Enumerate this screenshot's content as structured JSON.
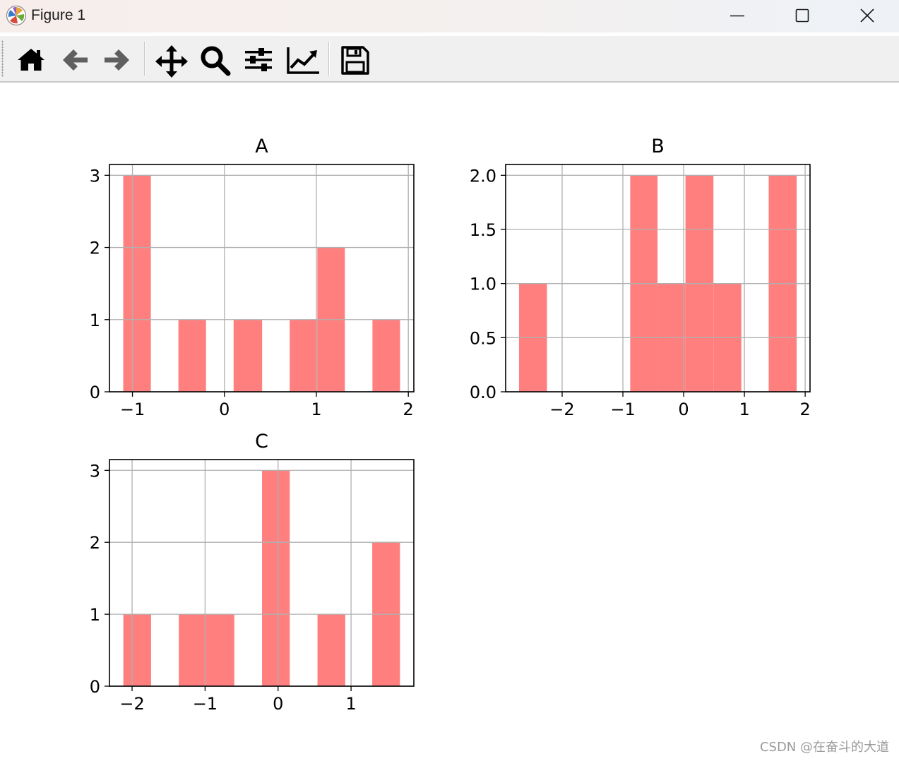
{
  "window": {
    "title": "Figure 1"
  },
  "toolbar": {
    "tools": [
      {
        "name": "home-icon",
        "tooltip": "Home"
      },
      {
        "name": "back-arrow-icon",
        "tooltip": "Back"
      },
      {
        "name": "forward-arrow-icon",
        "tooltip": "Forward"
      },
      {
        "name": "pan-icon",
        "tooltip": "Pan"
      },
      {
        "name": "zoom-icon",
        "tooltip": "Zoom"
      },
      {
        "name": "subplots-icon",
        "tooltip": "Subplots"
      },
      {
        "name": "customize-icon",
        "tooltip": "Customize"
      },
      {
        "name": "save-icon",
        "tooltip": "Save"
      }
    ]
  },
  "watermark": "CSDN @在奋斗的大道",
  "colors": {
    "bar": "#ff7f7f",
    "grid": "#b0b0b0",
    "axes": "#000000"
  },
  "chart_data": [
    {
      "type": "bar",
      "title": "A",
      "grid": true,
      "xlim": [
        -1.25,
        2.06
      ],
      "ylim": [
        0,
        3.15
      ],
      "xticks": [
        -1,
        0,
        1,
        2
      ],
      "xticklabels": [
        "−1",
        "0",
        "1",
        "2"
      ],
      "yticks": [
        0,
        1,
        2,
        3
      ],
      "yticklabels": [
        "0",
        "1",
        "2",
        "3"
      ],
      "bins": [
        {
          "x0": -1.1,
          "x1": -0.8,
          "count": 3
        },
        {
          "x0": -0.8,
          "x1": -0.5,
          "count": 0
        },
        {
          "x0": -0.5,
          "x1": -0.2,
          "count": 1
        },
        {
          "x0": -0.2,
          "x1": 0.1,
          "count": 0
        },
        {
          "x0": 0.1,
          "x1": 0.41,
          "count": 1
        },
        {
          "x0": 0.41,
          "x1": 0.71,
          "count": 0
        },
        {
          "x0": 0.71,
          "x1": 1.01,
          "count": 1
        },
        {
          "x0": 1.01,
          "x1": 1.31,
          "count": 2
        },
        {
          "x0": 1.31,
          "x1": 1.61,
          "count": 0
        },
        {
          "x0": 1.61,
          "x1": 1.91,
          "count": 1
        }
      ]
    },
    {
      "type": "bar",
      "title": "B",
      "grid": true,
      "xlim": [
        -2.93,
        2.08
      ],
      "ylim": [
        0,
        2.1
      ],
      "xticks": [
        -2,
        -1,
        0,
        1,
        2
      ],
      "xticklabels": [
        "−2",
        "−1",
        "0",
        "1",
        "2"
      ],
      "yticks": [
        0,
        0.5,
        1.0,
        1.5,
        2.0
      ],
      "yticklabels": [
        "0.0",
        "0.5",
        "1.0",
        "1.5",
        "2.0"
      ],
      "bins": [
        {
          "x0": -2.71,
          "x1": -2.25,
          "count": 1
        },
        {
          "x0": -2.25,
          "x1": -1.8,
          "count": 0
        },
        {
          "x0": -1.8,
          "x1": -1.34,
          "count": 0
        },
        {
          "x0": -1.34,
          "x1": -0.88,
          "count": 0
        },
        {
          "x0": -0.88,
          "x1": -0.43,
          "count": 2
        },
        {
          "x0": -0.43,
          "x1": 0.03,
          "count": 1
        },
        {
          "x0": 0.03,
          "x1": 0.49,
          "count": 2
        },
        {
          "x0": 0.49,
          "x1": 0.95,
          "count": 1
        },
        {
          "x0": 0.95,
          "x1": 1.4,
          "count": 0
        },
        {
          "x0": 1.4,
          "x1": 1.86,
          "count": 2
        }
      ]
    },
    {
      "type": "bar",
      "title": "C",
      "grid": true,
      "xlim": [
        -2.31,
        1.86
      ],
      "ylim": [
        0,
        3.15
      ],
      "xticks": [
        -2,
        -1,
        0,
        1
      ],
      "xticklabels": [
        "−2",
        "−1",
        "0",
        "1"
      ],
      "yticks": [
        0,
        1,
        2,
        3
      ],
      "yticklabels": [
        "0",
        "1",
        "2",
        "3"
      ],
      "bins": [
        {
          "x0": -2.12,
          "x1": -1.74,
          "count": 1
        },
        {
          "x0": -1.74,
          "x1": -1.36,
          "count": 0
        },
        {
          "x0": -1.36,
          "x1": -0.98,
          "count": 1
        },
        {
          "x0": -0.98,
          "x1": -0.6,
          "count": 1
        },
        {
          "x0": -0.6,
          "x1": -0.22,
          "count": 0
        },
        {
          "x0": -0.22,
          "x1": 0.16,
          "count": 3
        },
        {
          "x0": 0.16,
          "x1": 0.54,
          "count": 0
        },
        {
          "x0": 0.54,
          "x1": 0.92,
          "count": 1
        },
        {
          "x0": 0.92,
          "x1": 1.29,
          "count": 0
        },
        {
          "x0": 1.29,
          "x1": 1.67,
          "count": 2
        }
      ]
    }
  ]
}
